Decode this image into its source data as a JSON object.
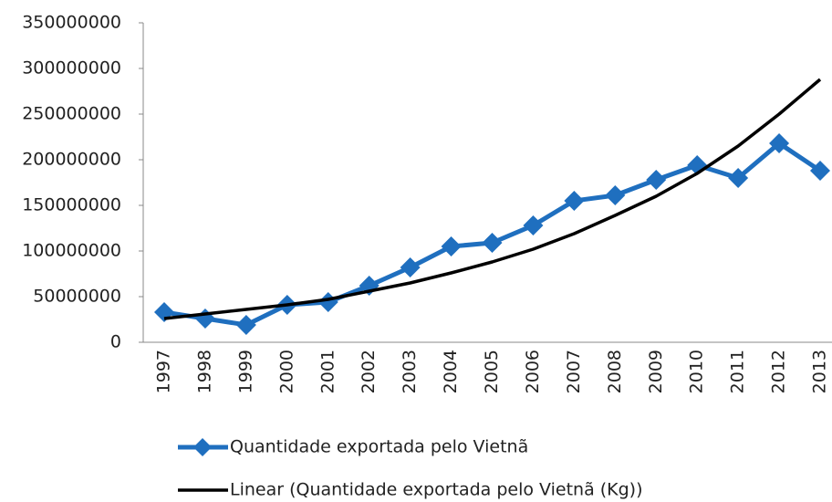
{
  "chart_data": {
    "type": "line",
    "categories": [
      "1997",
      "1998",
      "1999",
      "2000",
      "2001",
      "2002",
      "2003",
      "2004",
      "2005",
      "2006",
      "2007",
      "2008",
      "2009",
      "2010",
      "2011",
      "2012",
      "2013"
    ],
    "series": [
      {
        "name": "Quantidade exportada pelo Vietnã",
        "color": "#1f6fbf",
        "marker": "diamond",
        "values": [
          33000000,
          26000000,
          19000000,
          41000000,
          44000000,
          62000000,
          82000000,
          105000000,
          109000000,
          128000000,
          155000000,
          161000000,
          178000000,
          194000000,
          180000000,
          218000000,
          188000000
        ]
      },
      {
        "name": "Linear (Quantidade exportada pelo Vietnã (Kg))",
        "color": "#000000",
        "values": [
          26000000,
          31000000,
          36000000,
          41000000,
          47000000,
          56000000,
          65000000,
          76000000,
          88000000,
          102000000,
          119000000,
          139000000,
          160000000,
          185000000,
          215000000,
          250000000,
          288000000
        ]
      }
    ],
    "ylim": [
      0,
      350000000
    ],
    "yticks": [
      0,
      50000000,
      100000000,
      150000000,
      200000000,
      250000000,
      300000000,
      350000000
    ],
    "grid": false,
    "legend": "bottom"
  }
}
